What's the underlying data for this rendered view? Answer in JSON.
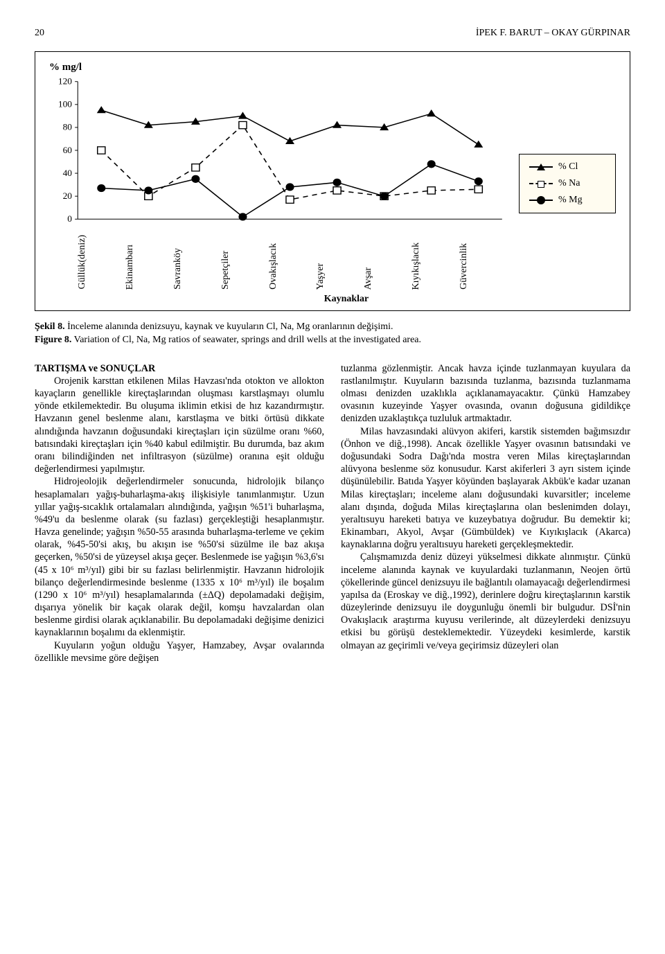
{
  "header": {
    "page_number": "20",
    "running_title": "İPEK F. BARUT – OKAY GÜRPINAR"
  },
  "chart": {
    "type": "line",
    "ylabel": "% mg/l",
    "xaxis_title": "Kaynaklar",
    "background_color": "#ffffff",
    "grid_color": "#000000",
    "axis_color": "#000000",
    "label_fontsize": 14,
    "ylim": [
      0,
      120
    ],
    "ytick_step": 20,
    "categories": [
      "Güllük(deniz)",
      "Ekinambarı",
      "Savranköy",
      "Sepetçiler",
      "Ovakışlacık",
      "Yaşyer",
      "Avşar",
      "Kıyıkışlacık",
      "Güvercinlik"
    ],
    "series": [
      {
        "name": "% Cl",
        "color": "#000000",
        "marker": "triangle",
        "line_dash": "solid",
        "values": [
          95,
          82,
          85,
          90,
          68,
          82,
          80,
          92,
          65
        ]
      },
      {
        "name": "% Na",
        "color": "#000000",
        "marker": "square-open",
        "line_dash": "dash",
        "values": [
          60,
          20,
          45,
          82,
          17,
          25,
          20,
          25,
          26
        ]
      },
      {
        "name": "% Mg",
        "color": "#000000",
        "marker": "circle",
        "line_dash": "solid",
        "values": [
          27,
          25,
          35,
          2,
          28,
          32,
          20,
          48,
          33
        ]
      }
    ],
    "legend": {
      "position": "right",
      "background_color": "#fffcf0",
      "border_color": "#000000",
      "items": [
        "% Cl",
        "% Na",
        "% Mg"
      ]
    },
    "line_width": 1.6,
    "marker_size": 9
  },
  "caption": {
    "sekil_label": "Şekil 8.",
    "sekil_text": " İnceleme alanında denizsuyu, kaynak ve kuyuların Cl, Na, Mg oranlarının değişimi.",
    "figure_label": "Figure 8.",
    "figure_text": " Variation of Cl, Na, Mg ratios of seawater, springs and drill wells at the investigated area."
  },
  "body": {
    "section_heading": "TARTIŞMA ve SONUÇLAR",
    "p1": "Orojenik karsttan etkilenen Milas Havzası'nda otokton ve allokton kayaçların genellikle kireçtaşlarından oluşması karstlaşmayı olumlu yönde etkilemektedir. Bu oluşuma iklimin etkisi de hız kazandırmıştır. Havzanın genel beslenme alanı, karstlaşma ve bitki örtüsü dikkate alındığında havzanın doğusundaki kireçtaşları için süzülme oranı %60, batısındaki kireçtaşları için %40 kabul edilmiştir. Bu durumda, baz akım oranı bilindiğinden net infiltrasyon (süzülme) oranına eşit olduğu değerlendirmesi yapılmıştır.",
    "p2": "Hidrojeolojik değerlendirmeler sonucunda, hidrolojik bilanço hesaplamaları yağış-buharlaşma-akış ilişkisiyle tanımlanmıştır. Uzun yıllar yağış-sıcaklık ortalamaları alındığında, yağışın %51'i buharlaşma, %49'u da beslenme olarak (su fazlası) gerçekleştiği hesaplanmıştır. Havza genelinde; yağışın %50-55 arasında buharlaşma-terleme ve çekim olarak, %45-50'si akış, bu akışın ise %50'si süzülme ile baz akışa geçerken, %50'si de yüzeysel akışa geçer. Beslenmede ise yağışın %3,6'sı (45 x 10⁶ m³/yıl) gibi bir su fazlası belirlenmiştir. Havzanın hidrolojik bilanço değerlendirmesinde beslenme (1335 x 10⁶ m³/yıl) ile boşalım (1290 x 10⁶ m³/yıl) hesaplamalarında (±ΔQ) depolamadaki değişim, dışarıya yönelik bir kaçak olarak değil, komşu havzalardan olan beslenme girdisi olarak açıklanabilir. Bu depolamadaki değişime denizici kaynaklarının boşalımı da eklenmiştir.",
    "p3": "Kuyuların yoğun olduğu Yaşyer, Hamzabey, Avşar ovalarında özellikle mevsime göre değişen",
    "p4": "tuzlanma gözlenmiştir. Ancak havza içinde tuzlanmayan kuyulara da rastlanılmıştır. Kuyuların bazısında tuzlanma, bazısında tuzlanmama olması denizden uzaklıkla açıklanamayacaktır. Çünkü Hamzabey ovasının kuzeyinde Yaşyer ovasında, ovanın doğusuna gidildikçe denizden uzaklaştıkça tuzluluk artmaktadır.",
    "p5": "Milas havzasındaki alüvyon akiferi, karstik sistemden bağımsızdır (Önhon ve diğ.,1998). Ancak özellikle Yaşyer ovasının batısındaki ve doğusundaki Sodra Dağı'nda mostra veren Milas kireçtaşlarından alüvyona beslenme söz konusudur. Karst akiferleri 3 ayrı sistem içinde düşünülebilir. Batıda Yaşyer köyünden başlayarak Akbük'e kadar uzanan Milas kireçtaşları; inceleme alanı doğusundaki kuvarsitler; inceleme alanı dışında, doğuda Milas kireçtaşlarına olan beslenimden dolayı, yeraltısuyu hareketi batıya ve kuzeybatıya doğrudur. Bu demektir ki; Ekinambarı, Akyol, Avşar (Gümbüldek) ve Kıyıkışlacık (Akarca) kaynaklarına doğru yeraltısuyu hareketi gerçekleşmektedir.",
    "p6": "Çalışmamızda deniz düzeyi yükselmesi dikkate alınmıştır. Çünkü inceleme alanında kaynak ve kuyulardaki tuzlanmanın, Neojen örtü çökellerinde güncel denizsuyu ile bağlantılı olamayacağı değerlendirmesi yapılsa da (Eroskay ve diğ.,1992), derinlere doğru kireçtaşlarının karstik düzeylerinde denizsuyu ile doygunluğu önemli bir bulgudur. DSİ'nin Ovakışlacık araştırma kuyusu verilerinde, alt düzeylerdeki denizsuyu etkisi bu görüşü desteklemektedir. Yüzeydeki kesimlerde, karstik olmayan az geçirimli ve/veya geçirimsiz düzeyleri olan"
  }
}
